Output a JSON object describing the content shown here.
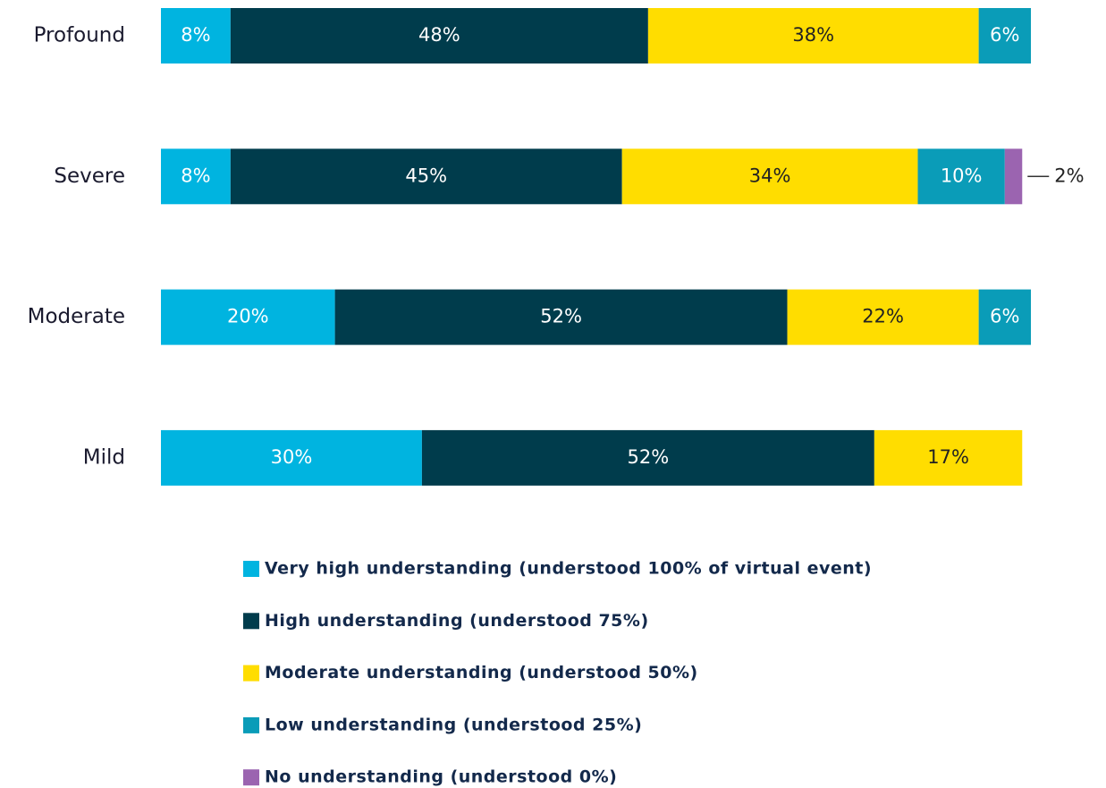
{
  "chart_data": {
    "type": "stacked-barh",
    "categories": [
      "Profound",
      "Severe",
      "Moderate",
      "Mild"
    ],
    "xlim": [
      0,
      100
    ],
    "series": [
      {
        "name": "Very high understanding (understood 100% of virtual event)",
        "color": "#00b4e0",
        "values": [
          8,
          8,
          20,
          30
        ],
        "value_labels": [
          "8%",
          "8%",
          "20%",
          "30%"
        ]
      },
      {
        "name": "High understanding (understood 75%)",
        "color": "#003c4c",
        "values": [
          48,
          45,
          52,
          52
        ],
        "value_labels": [
          "48%",
          "45%",
          "52%",
          "52%"
        ]
      },
      {
        "name": "Moderate understanding (understood 50%)",
        "color": "#ffdd00",
        "values": [
          38,
          34,
          22,
          17
        ],
        "value_labels": [
          "38%",
          "34%",
          "22%",
          "17%"
        ]
      },
      {
        "name": "Low understanding (understood 25%)",
        "color": "#0a9cb8",
        "values": [
          6,
          10,
          6,
          null
        ],
        "value_labels": [
          "6%",
          "10%",
          "6%",
          null
        ]
      },
      {
        "name": "No understanding (understood 0%)",
        "color": "#9b64b0",
        "values": [
          null,
          2,
          null,
          null
        ],
        "value_labels": [
          null,
          "2%",
          null,
          null
        ]
      }
    ]
  }
}
